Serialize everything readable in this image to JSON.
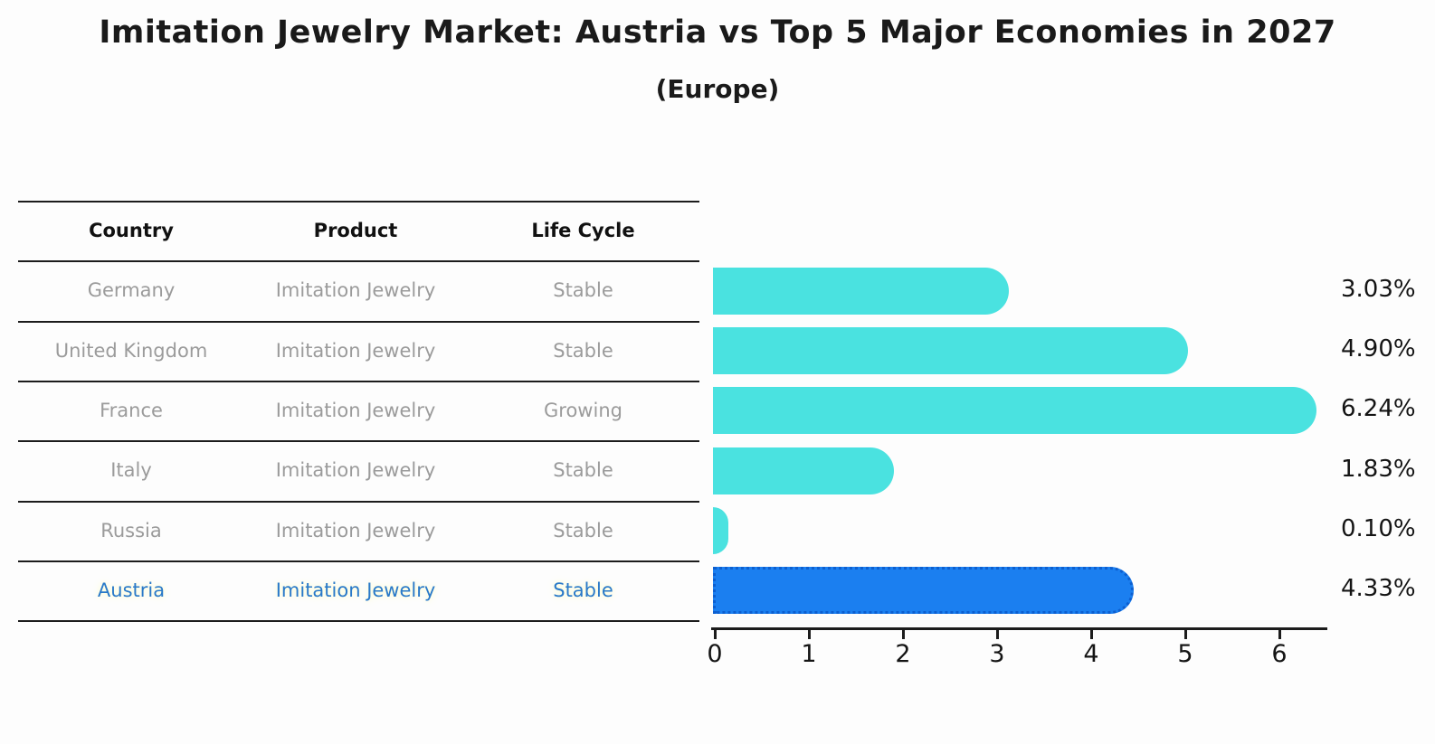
{
  "title": "Imitation Jewelry Market: Austria vs Top 5 Major Economies in 2027",
  "subtitle": "(Europe)",
  "table": {
    "headers": [
      "Country",
      "Product",
      "Life Cycle"
    ],
    "rows": [
      {
        "country": "Germany",
        "product": "Imitation Jewelry",
        "life_cycle": "Stable",
        "highlight": false
      },
      {
        "country": "United Kingdom",
        "product": "Imitation Jewelry",
        "life_cycle": "Stable",
        "highlight": false
      },
      {
        "country": "France",
        "product": "Imitation Jewelry",
        "life_cycle": "Growing",
        "highlight": false
      },
      {
        "country": "Italy",
        "product": "Imitation Jewelry",
        "life_cycle": "Stable",
        "highlight": false
      },
      {
        "country": "Russia",
        "product": "Imitation Jewelry",
        "life_cycle": "Stable",
        "highlight": false
      },
      {
        "country": "Austria",
        "product": "Imitation Jewelry",
        "life_cycle": "Stable",
        "highlight": true
      }
    ]
  },
  "chart_data": {
    "type": "bar",
    "orientation": "horizontal",
    "categories": [
      "Germany",
      "United Kingdom",
      "France",
      "Italy",
      "Russia",
      "Austria"
    ],
    "values": [
      3.03,
      4.9,
      6.24,
      1.83,
      0.1,
      4.33
    ],
    "value_labels": [
      "3.03%",
      "4.90%",
      "6.24%",
      "1.83%",
      "0.10%",
      "4.33%"
    ],
    "highlight_index": 5,
    "x_ticks": [
      "0",
      "1",
      "2",
      "3",
      "4",
      "5",
      "6"
    ],
    "xlim": [
      0,
      6.5
    ],
    "grid": "off",
    "legend": "none",
    "bar_color": "#4ae2e0",
    "highlight_bar_color": "#1b7ff0",
    "highlight_border_color": "#0d5fd0",
    "text_gray": "#9b9b9b",
    "highlight_text_color": "#2979c9"
  }
}
